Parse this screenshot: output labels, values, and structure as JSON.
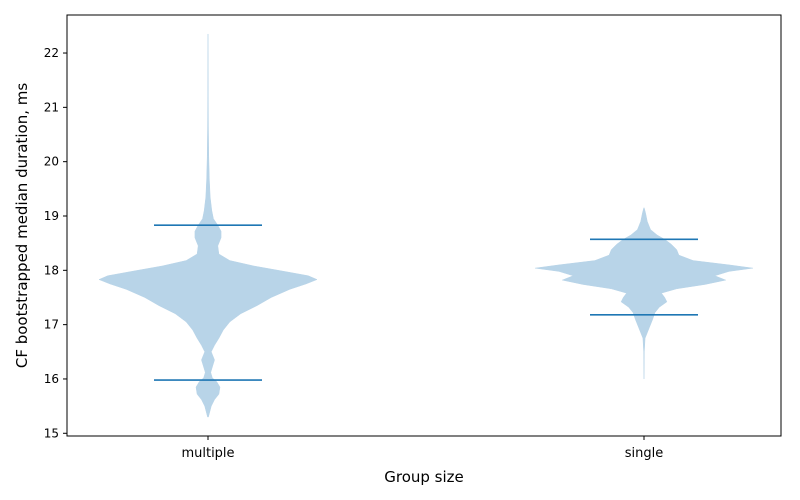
{
  "chart_data": {
    "type": "violin",
    "xlabel": "Group size",
    "ylabel": "CF bootstrapped median duration, ms",
    "categories": [
      "multiple",
      "single"
    ],
    "ylim": [
      14.95,
      22.7
    ],
    "yticks": [
      15,
      16,
      17,
      18,
      19,
      20,
      21,
      22
    ],
    "grid": false,
    "legend": "none",
    "colors": {
      "body": "#b8d4e8",
      "lines": "#1f77b4"
    },
    "violins": [
      {
        "category": "multiple",
        "min": 15.98,
        "max": 18.83,
        "profile": [
          [
            15.3,
            0.004
          ],
          [
            15.5,
            0.03
          ],
          [
            15.62,
            0.06
          ],
          [
            15.72,
            0.1
          ],
          [
            15.85,
            0.11
          ],
          [
            15.95,
            0.08
          ],
          [
            16.02,
            0.04
          ],
          [
            16.12,
            0.025
          ],
          [
            16.22,
            0.04
          ],
          [
            16.35,
            0.06
          ],
          [
            16.5,
            0.03
          ],
          [
            16.62,
            0.06
          ],
          [
            16.75,
            0.1
          ],
          [
            16.9,
            0.14
          ],
          [
            17.05,
            0.2
          ],
          [
            17.2,
            0.3
          ],
          [
            17.35,
            0.45
          ],
          [
            17.5,
            0.58
          ],
          [
            17.65,
            0.75
          ],
          [
            17.75,
            0.9
          ],
          [
            17.83,
            1.0
          ],
          [
            17.9,
            0.92
          ],
          [
            17.98,
            0.7
          ],
          [
            18.08,
            0.42
          ],
          [
            18.18,
            0.2
          ],
          [
            18.3,
            0.1
          ],
          [
            18.45,
            0.09
          ],
          [
            18.6,
            0.12
          ],
          [
            18.72,
            0.12
          ],
          [
            18.83,
            0.09
          ],
          [
            18.95,
            0.05
          ],
          [
            19.1,
            0.035
          ],
          [
            19.35,
            0.02
          ],
          [
            19.7,
            0.012
          ],
          [
            20.1,
            0.007
          ],
          [
            20.6,
            0.004
          ],
          [
            21.3,
            0.002
          ],
          [
            22.35,
            0.0005
          ]
        ]
      },
      {
        "category": "single",
        "min": 17.18,
        "max": 18.57,
        "profile": [
          [
            16.0,
            0.0005
          ],
          [
            16.5,
            0.003
          ],
          [
            16.75,
            0.01
          ],
          [
            16.95,
            0.05
          ],
          [
            17.1,
            0.08
          ],
          [
            17.22,
            0.1
          ],
          [
            17.32,
            0.14
          ],
          [
            17.42,
            0.21
          ],
          [
            17.5,
            0.19
          ],
          [
            17.58,
            0.16
          ],
          [
            17.66,
            0.3
          ],
          [
            17.74,
            0.56
          ],
          [
            17.82,
            0.75
          ],
          [
            17.9,
            0.65
          ],
          [
            17.98,
            0.78
          ],
          [
            18.04,
            1.0
          ],
          [
            18.1,
            0.78
          ],
          [
            18.18,
            0.45
          ],
          [
            18.28,
            0.32
          ],
          [
            18.38,
            0.3
          ],
          [
            18.48,
            0.25
          ],
          [
            18.57,
            0.19
          ],
          [
            18.65,
            0.12
          ],
          [
            18.75,
            0.06
          ],
          [
            18.9,
            0.03
          ],
          [
            19.05,
            0.015
          ],
          [
            19.15,
            0.002
          ]
        ]
      }
    ]
  }
}
